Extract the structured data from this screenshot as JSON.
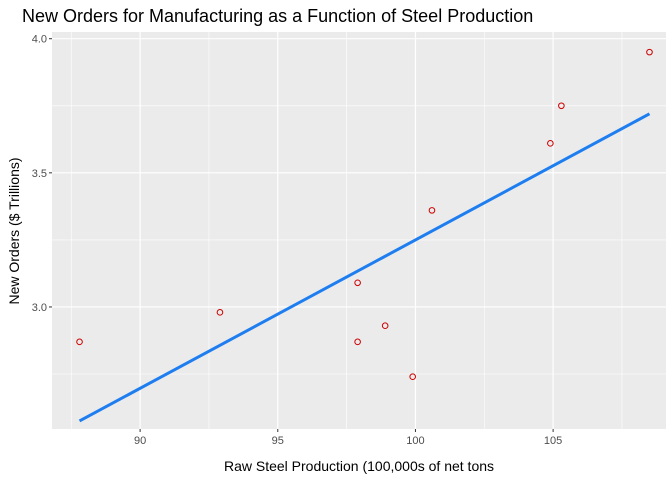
{
  "chart_data": {
    "type": "scatter",
    "title": "New Orders for Manufacturing as a Function of Steel Production",
    "xlabel": "Raw Steel Production (100,000s of net tons",
    "ylabel": "New Orders ($ Trillions)",
    "xlim": [
      86.8,
      109.1
    ],
    "ylim": [
      2.545,
      4.025
    ],
    "x_ticks": [
      90,
      95,
      100,
      105
    ],
    "x_tick_labels": [
      "90",
      "95",
      "100",
      "105"
    ],
    "y_ticks": [
      3.0,
      3.5,
      4.0
    ],
    "y_tick_labels": [
      "3.0",
      "3.5",
      "4.0"
    ],
    "grid": true,
    "legend": "none",
    "points": [
      {
        "x": 87.8,
        "y": 2.87
      },
      {
        "x": 92.9,
        "y": 2.98
      },
      {
        "x": 97.9,
        "y": 3.09
      },
      {
        "x": 97.9,
        "y": 2.87
      },
      {
        "x": 98.9,
        "y": 2.93
      },
      {
        "x": 99.9,
        "y": 2.74
      },
      {
        "x": 100.6,
        "y": 3.36
      },
      {
        "x": 104.9,
        "y": 3.61
      },
      {
        "x": 105.3,
        "y": 3.75
      },
      {
        "x": 108.5,
        "y": 3.95
      }
    ],
    "trend_line": {
      "x": [
        87.8,
        108.5
      ],
      "y": [
        2.575,
        3.72
      ]
    },
    "colors": {
      "panel_background": "#ebebeb",
      "grid": "#ffffff",
      "points": "#cc0000",
      "trend_line": "#1e7ef0",
      "tick_text": "#4d4d4d"
    }
  }
}
